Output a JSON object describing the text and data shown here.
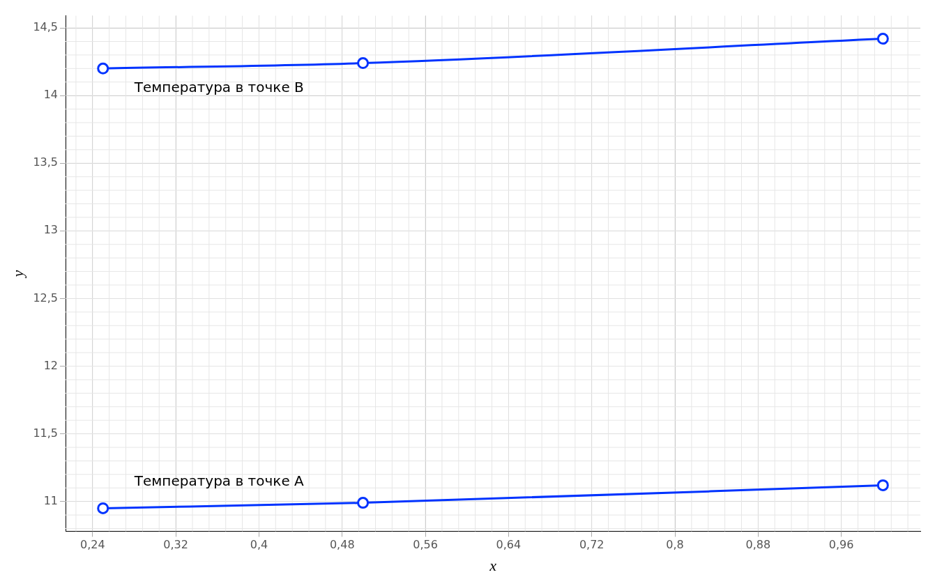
{
  "chart_data": {
    "type": "line",
    "xlabel": "x",
    "ylabel": "y",
    "xlim": [
      0.214,
      1.036
    ],
    "ylim": [
      10.78,
      14.59
    ],
    "xticks": [
      {
        "value": 0.24,
        "label": "0,24"
      },
      {
        "value": 0.32,
        "label": "0,32"
      },
      {
        "value": 0.4,
        "label": "0,4"
      },
      {
        "value": 0.48,
        "label": "0,48"
      },
      {
        "value": 0.56,
        "label": "0,56"
      },
      {
        "value": 0.64,
        "label": "0,64"
      },
      {
        "value": 0.72,
        "label": "0,72"
      },
      {
        "value": 0.8,
        "label": "0,8"
      },
      {
        "value": 0.88,
        "label": "0,88"
      },
      {
        "value": 0.96,
        "label": "0,96"
      }
    ],
    "yticks": [
      11,
      {
        "value": 11.5,
        "label": "11,5"
      },
      12,
      {
        "value": 12.5,
        "label": "12,5"
      },
      13,
      {
        "value": 13.5,
        "label": "13,5"
      },
      14,
      {
        "value": 14.5,
        "label": "14,5"
      }
    ],
    "x": [
      0.25,
      0.5,
      1.0
    ],
    "series": [
      {
        "name": "Температура в точке B",
        "color": "#0033ff",
        "values": [
          14.2,
          14.24,
          14.42
        ]
      },
      {
        "name": "Температура в точке A",
        "color": "#0033ff",
        "values": [
          10.95,
          10.99,
          11.12
        ]
      }
    ],
    "grid": true,
    "legend": false,
    "marker": "circle",
    "line_style": "solid"
  }
}
